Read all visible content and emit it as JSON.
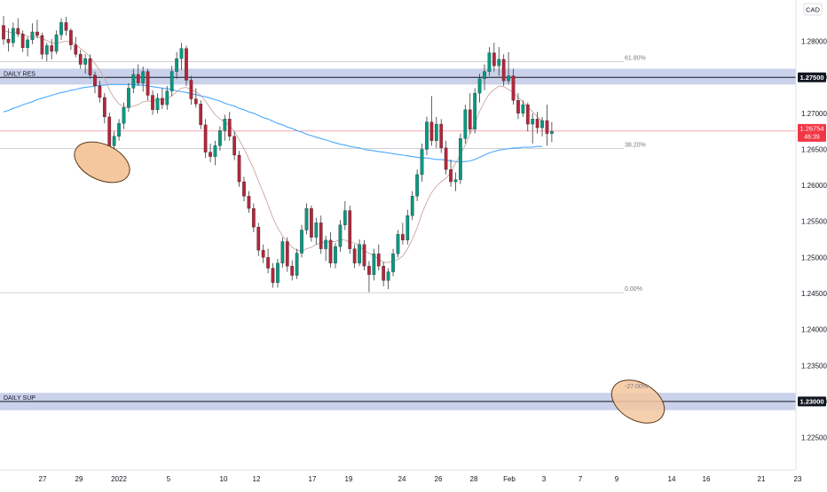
{
  "currency_badge": "CAD",
  "price_label": {
    "value": "1.26754",
    "countdown": "46:39",
    "color": "#f23645"
  },
  "zones": [
    {
      "label": "DAILY RES",
      "level": 1.275,
      "band": [
        1.274,
        1.2762
      ],
      "level_label": "1.27500"
    },
    {
      "label": "DAILY SUP",
      "level": 1.23,
      "band": [
        1.2288,
        1.2312
      ],
      "level_label": "1.23000"
    }
  ],
  "fib_levels": [
    {
      "label": "61.80%",
      "value": 1.2772
    },
    {
      "label": "38.20%",
      "value": 1.2651
    },
    {
      "label": "0.00%",
      "value": 1.2451
    },
    {
      "label": "-27.00%",
      "value": 1.2316
    }
  ],
  "colors": {
    "up": "#089981",
    "down": "#b2263a",
    "ma_blue": "#4aa8ff",
    "ma_pink": "#c9a7a0",
    "zone_fill": "#b8c2e3",
    "level_line": "#131722",
    "ellipse_fill": "#f5c79f",
    "ellipse_stroke": "#5a3a1a"
  },
  "chart_data": {
    "type": "candlestick",
    "y_axis": {
      "range": [
        1.2215,
        1.2845
      ],
      "ticks": [
        1.28,
        1.275,
        1.27,
        1.265,
        1.26,
        1.255,
        1.25,
        1.245,
        1.24,
        1.235,
        1.23,
        1.225
      ],
      "tick_labels": [
        "1.28000",
        "1.27500",
        "1.27000",
        "1.26500",
        "1.26000",
        "1.25500",
        "1.25000",
        "1.24500",
        "1.24000",
        "1.23500",
        "1.23000",
        "1.22500"
      ]
    },
    "x_axis": {
      "ticks": [
        "27",
        "29",
        "2022",
        "5",
        "10",
        "12",
        "17",
        "19",
        "24",
        "26",
        "28",
        "Feb",
        "3",
        "7",
        "9",
        "14",
        "16",
        "21",
        "23"
      ]
    },
    "series": [
      {
        "candles": [
          [
            1.2822,
            1.2835,
            1.2795,
            1.2803
          ],
          [
            1.2803,
            1.2818,
            1.2786,
            1.2798
          ],
          [
            1.2798,
            1.2826,
            1.2792,
            1.2818
          ],
          [
            1.2818,
            1.2832,
            1.2806,
            1.281
          ],
          [
            1.281,
            1.2815,
            1.2785,
            1.2791
          ],
          [
            1.2791,
            1.2806,
            1.2779,
            1.2802
          ],
          [
            1.2802,
            1.2825,
            1.2796,
            1.2813
          ],
          [
            1.2813,
            1.283,
            1.2804,
            1.2808
          ],
          [
            1.2808,
            1.2812,
            1.2775,
            1.2782
          ],
          [
            1.2782,
            1.2798,
            1.2772,
            1.2794
          ],
          [
            1.2794,
            1.2803,
            1.2775,
            1.2786
          ],
          [
            1.2786,
            1.2815,
            1.2782,
            1.2809
          ],
          [
            1.2809,
            1.2832,
            1.2802,
            1.2826
          ],
          [
            1.2826,
            1.2834,
            1.2808,
            1.2815
          ],
          [
            1.2815,
            1.2818,
            1.2788,
            1.2795
          ],
          [
            1.2795,
            1.2806,
            1.2778,
            1.2782
          ],
          [
            1.2782,
            1.2788,
            1.2762,
            1.2768
          ],
          [
            1.2768,
            1.2782,
            1.2755,
            1.2776
          ],
          [
            1.2776,
            1.2782,
            1.2748,
            1.2753
          ],
          [
            1.2753,
            1.2758,
            1.2728,
            1.2738
          ],
          [
            1.2738,
            1.2745,
            1.2715,
            1.2722
          ],
          [
            1.2722,
            1.2728,
            1.2686,
            1.2695
          ],
          [
            1.2695,
            1.2701,
            1.2642,
            1.2655
          ],
          [
            1.2655,
            1.2675,
            1.2632,
            1.2668
          ],
          [
            1.2668,
            1.2692,
            1.2662,
            1.2686
          ],
          [
            1.2686,
            1.2715,
            1.2678,
            1.2708
          ],
          [
            1.2708,
            1.2742,
            1.2702,
            1.2735
          ],
          [
            1.2735,
            1.2762,
            1.2728,
            1.2754
          ],
          [
            1.2754,
            1.2768,
            1.2738,
            1.2742
          ],
          [
            1.2742,
            1.2765,
            1.273,
            1.2758
          ],
          [
            1.2758,
            1.2762,
            1.2718,
            1.2725
          ],
          [
            1.2725,
            1.2732,
            1.2698,
            1.2705
          ],
          [
            1.2705,
            1.2728,
            1.27,
            1.2721
          ],
          [
            1.2721,
            1.2735,
            1.2706,
            1.2712
          ],
          [
            1.2712,
            1.2738,
            1.2705,
            1.2731
          ],
          [
            1.2731,
            1.2766,
            1.2724,
            1.2758
          ],
          [
            1.2758,
            1.2785,
            1.2748,
            1.2776
          ],
          [
            1.2776,
            1.2798,
            1.276,
            1.279
          ],
          [
            1.279,
            1.2794,
            1.2738,
            1.2746
          ],
          [
            1.2746,
            1.2752,
            1.2712,
            1.272
          ],
          [
            1.272,
            1.2735,
            1.2708,
            1.2713
          ],
          [
            1.2713,
            1.2718,
            1.2678,
            1.2684
          ],
          [
            1.2684,
            1.2692,
            1.2638,
            1.2646
          ],
          [
            1.2646,
            1.2658,
            1.2632,
            1.264
          ],
          [
            1.264,
            1.2662,
            1.2628,
            1.2655
          ],
          [
            1.2655,
            1.2682,
            1.2648,
            1.2676
          ],
          [
            1.2676,
            1.2698,
            1.2662,
            1.2692
          ],
          [
            1.2692,
            1.2702,
            1.2662,
            1.2668
          ],
          [
            1.2668,
            1.2675,
            1.2635,
            1.2642
          ],
          [
            1.2642,
            1.2648,
            1.2598,
            1.2605
          ],
          [
            1.2605,
            1.2612,
            1.2578,
            1.2585
          ],
          [
            1.2585,
            1.2592,
            1.2562,
            1.2568
          ],
          [
            1.2568,
            1.2575,
            1.2535,
            1.2542
          ],
          [
            1.2542,
            1.2548,
            1.2502,
            1.251
          ],
          [
            1.251,
            1.2518,
            1.2492,
            1.25
          ],
          [
            1.25,
            1.2512,
            1.2478,
            1.2485
          ],
          [
            1.2485,
            1.2492,
            1.2458,
            1.2465
          ],
          [
            1.2465,
            1.2498,
            1.2458,
            1.2492
          ],
          [
            1.2492,
            1.2528,
            1.2486,
            1.2522
          ],
          [
            1.2522,
            1.2528,
            1.248,
            1.2488
          ],
          [
            1.2488,
            1.2496,
            1.2468,
            1.2475
          ],
          [
            1.2475,
            1.2512,
            1.247,
            1.2506
          ],
          [
            1.2506,
            1.2545,
            1.25,
            1.2538
          ],
          [
            1.2538,
            1.2575,
            1.2532,
            1.2568
          ],
          [
            1.2568,
            1.2572,
            1.2522,
            1.2528
          ],
          [
            1.2528,
            1.2555,
            1.2518,
            1.2548
          ],
          [
            1.2548,
            1.2558,
            1.2505,
            1.2512
          ],
          [
            1.2512,
            1.253,
            1.2495,
            1.2524
          ],
          [
            1.2524,
            1.2535,
            1.2486,
            1.2492
          ],
          [
            1.2492,
            1.252,
            1.2485,
            1.2515
          ],
          [
            1.2515,
            1.2552,
            1.2508,
            1.2545
          ],
          [
            1.2545,
            1.2578,
            1.2538,
            1.2565
          ],
          [
            1.2565,
            1.2572,
            1.2505,
            1.2512
          ],
          [
            1.2512,
            1.2518,
            1.2485,
            1.2492
          ],
          [
            1.2492,
            1.2525,
            1.2488,
            1.2518
          ],
          [
            1.2518,
            1.2524,
            1.2482,
            1.2488
          ],
          [
            1.2488,
            1.2495,
            1.2452,
            1.2476
          ],
          [
            1.2476,
            1.2512,
            1.2468,
            1.2505
          ],
          [
            1.2505,
            1.2518,
            1.2482,
            1.2488
          ],
          [
            1.2488,
            1.2494,
            1.246,
            1.2468
          ],
          [
            1.2468,
            1.2485,
            1.2456,
            1.248
          ],
          [
            1.248,
            1.2512,
            1.2474,
            1.2505
          ],
          [
            1.2505,
            1.2538,
            1.25,
            1.2532
          ],
          [
            1.2532,
            1.2548,
            1.2518,
            1.2524
          ],
          [
            1.2524,
            1.2566,
            1.2518,
            1.2558
          ],
          [
            1.2558,
            1.2592,
            1.2552,
            1.2585
          ],
          [
            1.2585,
            1.2622,
            1.2578,
            1.2615
          ],
          [
            1.2615,
            1.2658,
            1.2605,
            1.265
          ],
          [
            1.265,
            1.2695,
            1.2642,
            1.2688
          ],
          [
            1.2688,
            1.2724,
            1.2655,
            1.2662
          ],
          [
            1.2662,
            1.2695,
            1.2652,
            1.2685
          ],
          [
            1.2685,
            1.2692,
            1.2645,
            1.2652
          ],
          [
            1.2652,
            1.2662,
            1.2615,
            1.2622
          ],
          [
            1.2622,
            1.2636,
            1.2598,
            1.2605
          ],
          [
            1.2605,
            1.2618,
            1.2592,
            1.2608
          ],
          [
            1.2608,
            1.2672,
            1.2602,
            1.2665
          ],
          [
            1.2665,
            1.2712,
            1.2658,
            1.2705
          ],
          [
            1.2705,
            1.2728,
            1.2672,
            1.2678
          ],
          [
            1.2678,
            1.2735,
            1.2672,
            1.2728
          ],
          [
            1.2728,
            1.2755,
            1.2715,
            1.2748
          ],
          [
            1.2748,
            1.2768,
            1.2732,
            1.2758
          ],
          [
            1.2758,
            1.2792,
            1.2752,
            1.2784
          ],
          [
            1.2784,
            1.2798,
            1.2758,
            1.2766
          ],
          [
            1.2766,
            1.2792,
            1.2752,
            1.2775
          ],
          [
            1.2775,
            1.2782,
            1.2738,
            1.2745
          ],
          [
            1.2745,
            1.2785,
            1.274,
            1.2752
          ],
          [
            1.2752,
            1.2762,
            1.2712,
            1.2718
          ],
          [
            1.2718,
            1.2728,
            1.2692,
            1.27
          ],
          [
            1.27,
            1.2718,
            1.2695,
            1.2712
          ],
          [
            1.2712,
            1.2715,
            1.2675,
            1.2685
          ],
          [
            1.2685,
            1.27,
            1.2658,
            1.2692
          ],
          [
            1.2692,
            1.2702,
            1.2672,
            1.268
          ],
          [
            1.268,
            1.2695,
            1.2668,
            1.269
          ],
          [
            1.269,
            1.2712,
            1.2655,
            1.2672
          ],
          [
            1.2672,
            1.2688,
            1.266,
            1.2675
          ]
        ]
      },
      {
        "name": "",
        "color": "ma_pink",
        "values": [
          1.2815,
          1.2813,
          1.2812,
          1.2812,
          1.281,
          1.2807,
          1.2806,
          1.2806,
          1.2804,
          1.2801,
          1.2798,
          1.2797,
          1.2799,
          1.28,
          1.2799,
          1.2796,
          1.279,
          1.2785,
          1.2778,
          1.2769,
          1.276,
          1.2748,
          1.2733,
          1.2721,
          1.2713,
          1.2709,
          1.2708,
          1.271,
          1.2712,
          1.2716,
          1.2717,
          1.2717,
          1.2719,
          1.2719,
          1.272,
          1.2724,
          1.273,
          1.2735,
          1.2736,
          1.2733,
          1.273,
          1.2725,
          1.2717,
          1.2707,
          1.2698,
          1.2692,
          1.2688,
          1.2683,
          1.2675,
          1.2663,
          1.2651,
          1.2637,
          1.2623,
          1.2606,
          1.259,
          1.2573,
          1.2555,
          1.2541,
          1.253,
          1.2522,
          1.2514,
          1.251,
          1.2509,
          1.2512,
          1.2514,
          1.2518,
          1.252,
          1.2521,
          1.2522,
          1.2522,
          1.2525,
          1.2524,
          1.2521,
          1.252,
          1.2516,
          1.2509,
          1.2506,
          1.2502,
          1.2498,
          1.2493,
          1.2493,
          1.2495,
          1.2497,
          1.2502,
          1.2512,
          1.2525,
          1.2541,
          1.2561,
          1.2577,
          1.259,
          1.2599,
          1.2605,
          1.261,
          1.2618,
          1.2631,
          1.2643,
          1.2656,
          1.2671,
          1.2686,
          1.2703,
          1.2716,
          1.2727,
          1.2733,
          1.2738,
          1.2737,
          1.2733,
          1.2729,
          1.2722,
          1.2716,
          1.2709,
          1.2702,
          1.2695,
          1.269
        ]
      },
      {
        "name": "",
        "color": "ma_blue",
        "values": [
          1.2702,
          1.2704,
          1.2707,
          1.2709,
          1.2712,
          1.2714,
          1.2716,
          1.2719,
          1.2721,
          1.2723,
          1.2725,
          1.2727,
          1.2729,
          1.273,
          1.2732,
          1.2733,
          1.2735,
          1.2736,
          1.2737,
          1.2738,
          1.2739,
          1.2739,
          1.274,
          1.274,
          1.274,
          1.274,
          1.274,
          1.274,
          1.2739,
          1.2739,
          1.2738,
          1.2737,
          1.2736,
          1.2735,
          1.2734,
          1.2733,
          1.2731,
          1.273,
          1.2729,
          1.2727,
          1.2726,
          1.2724,
          1.2723,
          1.2721,
          1.2719,
          1.2717,
          1.2714,
          1.2712,
          1.271,
          1.2707,
          1.2705,
          1.2702,
          1.27,
          1.2697,
          1.2694,
          1.2692,
          1.2689,
          1.2686,
          1.2684,
          1.2681,
          1.2679,
          1.2676,
          1.2674,
          1.2671,
          1.2669,
          1.2667,
          1.2665,
          1.2663,
          1.2661,
          1.2659,
          1.2657,
          1.2656,
          1.2654,
          1.2653,
          1.2652,
          1.265,
          1.2649,
          1.2648,
          1.2647,
          1.2646,
          1.2645,
          1.2644,
          1.2643,
          1.2642,
          1.2641,
          1.264,
          1.2639,
          1.2638,
          1.2638,
          1.2637,
          1.2636,
          1.2636,
          1.2635,
          1.2634,
          1.2633,
          1.2633,
          1.2633,
          1.2634,
          1.2636,
          1.2639,
          1.2642,
          1.2645,
          1.2647,
          1.2649,
          1.265,
          1.2651,
          1.2652,
          1.2652,
          1.2653,
          1.2653,
          1.2653,
          1.2654,
          1.2654
        ]
      }
    ]
  }
}
